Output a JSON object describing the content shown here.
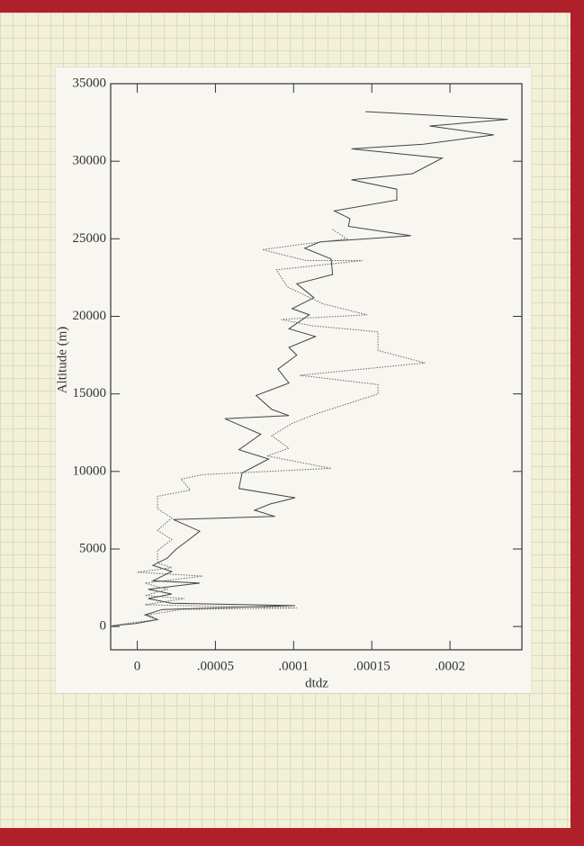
{
  "chart_data": {
    "type": "line",
    "x_label": "dtdz",
    "y_label": "Altitude (m)",
    "xlim": [
      -1.7e-05,
      0.000246
    ],
    "ylim": [
      -1500,
      35000
    ],
    "xticks": [
      0,
      {
        "value": 5e-05,
        "label": ".00005"
      },
      {
        "value": 0.0001,
        "label": ".0001"
      },
      {
        "value": 0.00015,
        "label": ".00015"
      },
      {
        "value": 0.0002,
        "label": ".0002"
      }
    ],
    "yticks": [
      0,
      5000,
      10000,
      15000,
      20000,
      25000,
      30000,
      35000
    ],
    "grid": false,
    "series": [
      {
        "color": "#444",
        "line_style": "solid",
        "x": [
          0.000146,
          0.000237,
          0.000187,
          0.000228,
          0.000183,
          0.000137,
          0.000195,
          0.000176,
          0.000137,
          0.000166,
          0.000166,
          0.000126,
          0.000136,
          0.000135,
          0.000175,
          0.000117,
          0.000107,
          0.000124,
          0.000125,
          0.000102,
          0.000113,
          9.9e-05,
          0.00011,
          9.7e-05,
          0.000114,
          9.7e-05,
          0.000102,
          9e-05,
          9.7e-05,
          7.6e-05,
          8.6e-05,
          9.7e-05,
          5.6e-05,
          7.9e-05,
          6.5e-05,
          8.4e-05,
          6.7e-05,
          6.5e-05,
          0.000101,
          8.5e-05,
          7.5e-05,
          8.8e-05,
          2.3e-05,
          4e-05,
          3.3e-05,
          2.5e-05,
          1.9e-05,
          1e-05,
          2.2e-05,
          1e-05,
          4e-05,
          7e-06,
          2.2e-05,
          7e-06,
          2.2e-05,
          0.000101,
          1.6e-05,
          5e-06,
          1.3e-05,
          -1e-06,
          -1.6e-05
        ],
        "values": [
          33200,
          32700,
          32270,
          31700,
          31100,
          30800,
          30200,
          29200,
          28800,
          28200,
          27500,
          26800,
          26300,
          25800,
          25200,
          24800,
          24400,
          23700,
          22700,
          22100,
          21200,
          20500,
          20100,
          19200,
          18700,
          18000,
          17500,
          16600,
          15700,
          14900,
          14000,
          13600,
          13400,
          12400,
          11400,
          10800,
          9900,
          8900,
          8300,
          7900,
          7500,
          7100,
          6900,
          6150,
          5600,
          5000,
          4400,
          3950,
          3550,
          2950,
          2800,
          2400,
          2100,
          1800,
          1500,
          1350,
          1100,
          750,
          450,
          200,
          50
        ]
      },
      {
        "color": "#666",
        "line_style": "dotted",
        "x": [
          0.000125,
          0.000134,
          0.000102,
          8e-05,
          0.000108,
          0.000144,
          8.9e-05,
          9.6e-05,
          0.000119,
          0.000147,
          9.2e-05,
          0.000111,
          0.000154,
          0.000154,
          0.000184,
          0.000104,
          0.000154,
          0.000154,
          0.000114,
          9.9e-05,
          8.6e-05,
          9.7e-05,
          8.3e-05,
          0.000124,
          4.2e-05,
          2.8e-05,
          3.4e-05,
          1.3e-05,
          1.3e-05,
          2.2e-05,
          1.3e-05,
          2.2e-05,
          1.3e-05,
          1.3e-05,
          2.2e-05,
          0,
          4.2e-05,
          5e-06,
          1.9e-05,
          5e-06,
          3e-05,
          5e-06,
          0.000102,
          2.8e-05,
          7e-06,
          1.3e-05,
          -7e-06,
          -1.6e-05
        ],
        "values": [
          25600,
          25000,
          24600,
          24300,
          23600,
          23600,
          23000,
          21900,
          20800,
          20100,
          19800,
          19400,
          19000,
          17800,
          17000,
          16200,
          15600,
          15000,
          13700,
          13100,
          12300,
          11500,
          11000,
          10200,
          9800,
          9500,
          8800,
          8400,
          7600,
          7000,
          6200,
          5600,
          4900,
          4100,
          3800,
          3500,
          3250,
          2800,
          2400,
          2000,
          1800,
          1400,
          1200,
          1100,
          750,
          450,
          200,
          50
        ]
      }
    ]
  }
}
